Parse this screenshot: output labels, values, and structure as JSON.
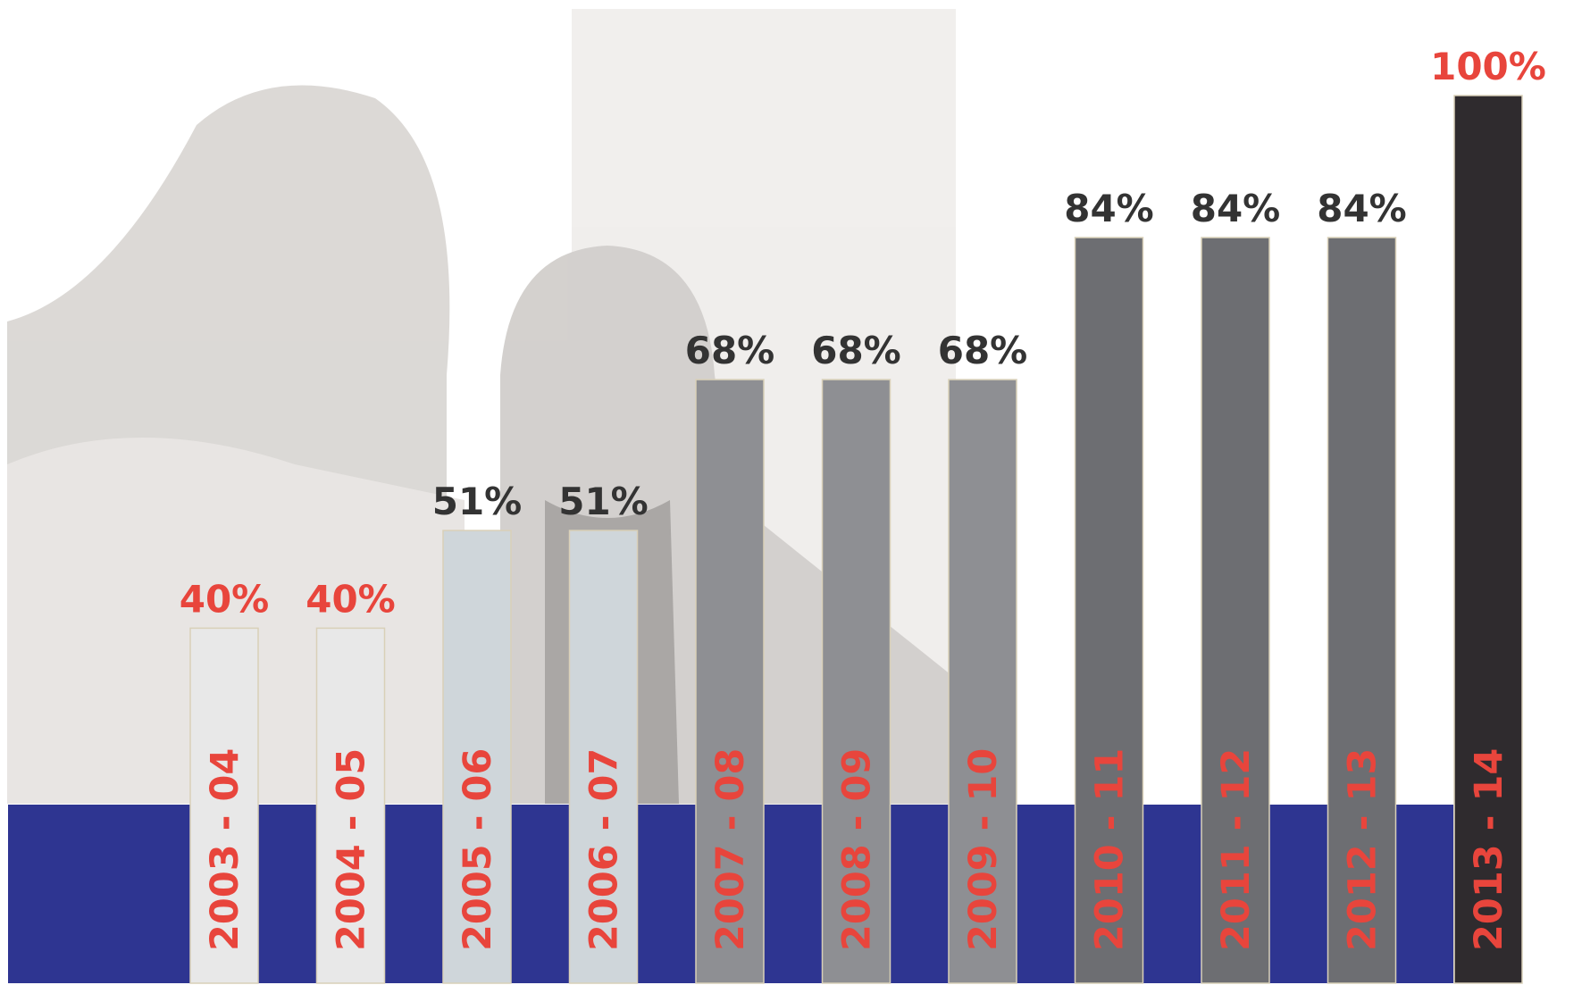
{
  "chart_data": {
    "type": "bar",
    "categories": [
      "2003 - 04",
      "2004 - 05",
      "2005 - 06",
      "2006 - 07",
      "2007 - 08",
      "2008 - 09",
      "2009 - 10",
      "2010 - 11",
      "2011 - 12",
      "2012 - 13",
      "2013 - 14"
    ],
    "values": [
      40,
      40,
      51,
      51,
      68,
      68,
      68,
      84,
      84,
      84,
      100
    ],
    "value_labels": [
      "40%",
      "40%",
      "51%",
      "51%",
      "68%",
      "68%",
      "68%",
      "84%",
      "84%",
      "84%",
      "100%"
    ],
    "colors": [
      "#e8e8e8",
      "#e8e8e8",
      "#cfd6da",
      "#cfd6da",
      "#8e8f93",
      "#8e8f93",
      "#8e8f93",
      "#6d6e72",
      "#6d6e72",
      "#6d6e72",
      "#2f2b2e"
    ],
    "label_colors": [
      "#e8453c",
      "#e8453c",
      "#333333",
      "#333333",
      "#333333",
      "#333333",
      "#333333",
      "#333333",
      "#333333",
      "#333333",
      "#e8453c"
    ],
    "category_color": "#e8453c",
    "band_color": "#2e3591"
  }
}
